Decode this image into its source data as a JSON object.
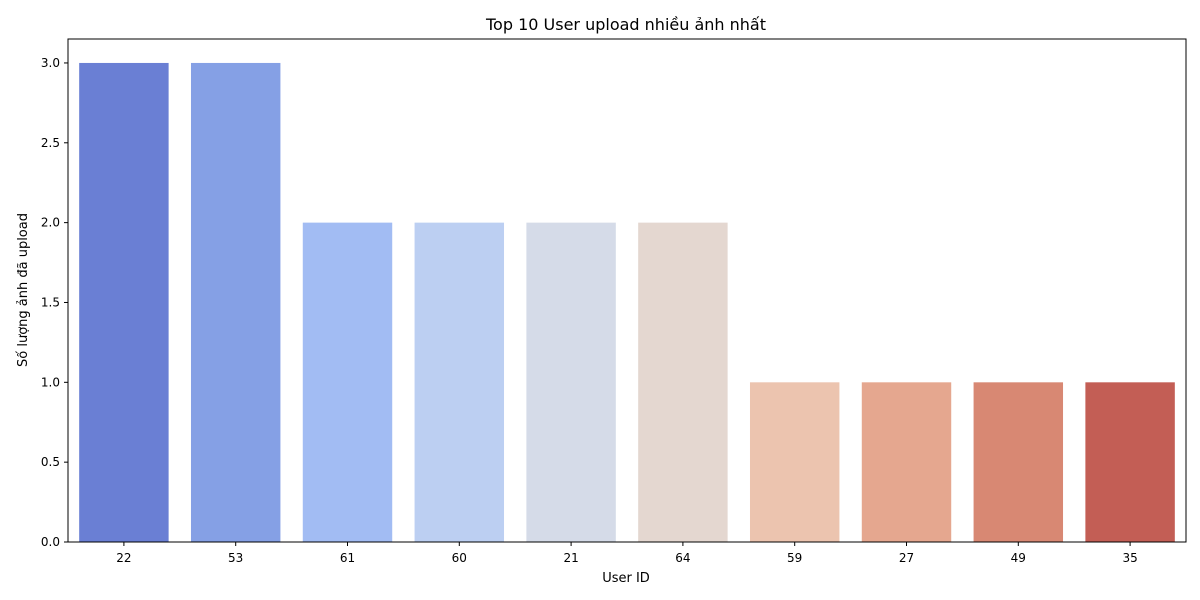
{
  "chart_data": {
    "type": "bar",
    "title": "Top 10 User upload nhiều ảnh nhất",
    "xlabel": "User ID",
    "ylabel": "Số lượng ảnh đã upload",
    "categories": [
      "22",
      "53",
      "61",
      "60",
      "21",
      "64",
      "59",
      "27",
      "49",
      "35"
    ],
    "values": [
      3,
      3,
      2,
      2,
      2,
      2,
      1,
      1,
      1,
      1
    ],
    "ylim": [
      0,
      3.15
    ],
    "yticks": [
      "0.0",
      "0.5",
      "1.0",
      "1.5",
      "2.0",
      "2.5",
      "3.0"
    ],
    "colors": [
      "#6a7fd4",
      "#85a0e5",
      "#a2bcf3",
      "#bccff2",
      "#d5dbe8",
      "#e4d7d0",
      "#ecc4af",
      "#e5a78f",
      "#d88873",
      "#c35e55"
    ],
    "grid": false,
    "legend": "none"
  }
}
